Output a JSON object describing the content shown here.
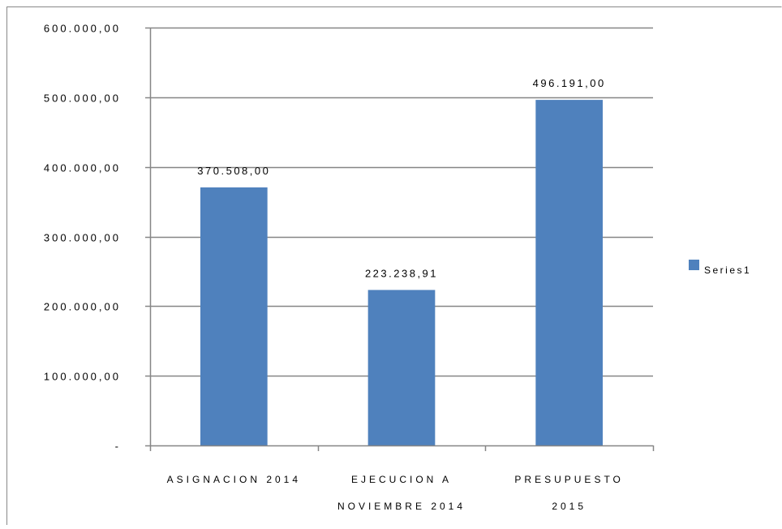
{
  "chart_data": {
    "type": "bar",
    "categories": [
      [
        "ASIGNACION 2014"
      ],
      [
        "EJECUCION A",
        "NOVIEMBRE 2014"
      ],
      [
        "PRESUPUESTO",
        "2015"
      ]
    ],
    "series": [
      {
        "name": "Series1",
        "values": [
          370508.0,
          223238.91,
          496191.0
        ]
      }
    ],
    "data_labels": [
      "370.508,00",
      "223.238,91",
      "496.191,00"
    ],
    "y_ticks": [
      0,
      100000,
      200000,
      300000,
      400000,
      500000,
      600000
    ],
    "y_tick_labels": [
      "-",
      "100.000,00",
      "200.000,00",
      "300.000,00",
      "400.000,00",
      "500.000,00",
      "600.000,00"
    ],
    "ylim": [
      0,
      600000
    ],
    "title": "",
    "xlabel": "",
    "ylabel": "",
    "grid": true,
    "legend_position": "right",
    "colors": {
      "bar": "#4f81bd",
      "grid": "#868686",
      "axis": "#868686",
      "frame": "#888888"
    }
  }
}
